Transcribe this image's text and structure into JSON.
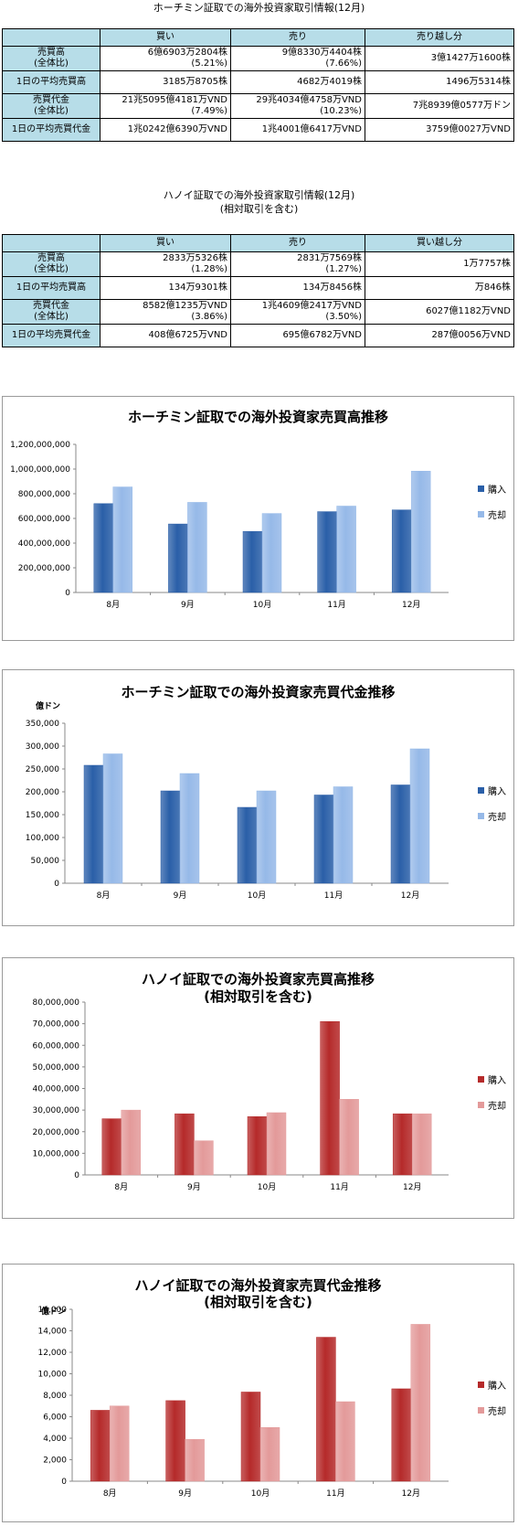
{
  "hcm_table": {
    "title": "ホーチミン証取での海外投資家取引情報(12月)",
    "headers": [
      "",
      "買い",
      "売り",
      "売り越し分"
    ],
    "rows": [
      {
        "label": "売買高",
        "label2": "(全体比)",
        "c1": "6億6903万2804株",
        "c1b": "(5.21%)",
        "c2": "9億8330万4404株",
        "c2b": "(7.66%)",
        "c3": "3億1427万1600株"
      },
      {
        "label": "1日の平均売買高",
        "label2": "",
        "c1": "3185万8705株",
        "c1b": "",
        "c2": "4682万4019株",
        "c2b": "",
        "c3": "1496万5314株"
      },
      {
        "label": "売買代金",
        "label2": "(全体比)",
        "c1": "21兆5095億4181万VND",
        "c1b": "(7.49%)",
        "c2": "29兆4034億4758万VND",
        "c2b": "(10.23%)",
        "c3": "7兆8939億0577万ドン"
      },
      {
        "label": "1日の平均売買代金",
        "label2": "",
        "c1": "1兆0242億6390万VND",
        "c1b": "",
        "c2": "1兆4001億6417万VND",
        "c2b": "",
        "c3": "3759億0027万VND"
      }
    ]
  },
  "hn_table": {
    "title": "ハノイ証取での海外投資家取引情報(12月)",
    "subtitle": "(相対取引を含む)",
    "headers": [
      "",
      "買い",
      "売り",
      "買い越し分"
    ],
    "rows": [
      {
        "label": "売買高",
        "label2": "(全体比)",
        "c1": "2833万5326株",
        "c1b": "(1.28%)",
        "c2": "2831万7569株",
        "c2b": "(1.27%)",
        "c3": "1万7757株"
      },
      {
        "label": "1日の平均売買高",
        "label2": "",
        "c1": "134万9301株",
        "c1b": "",
        "c2": "134万8456株",
        "c2b": "",
        "c3": "万846株"
      },
      {
        "label": "売買代金",
        "label2": "(全体比)",
        "c1": "8582億1235万VND",
        "c1b": "(3.86%)",
        "c2": "1兆4609億2417万VND",
        "c2b": "(3.50%)",
        "c3": "6027億1182万VND"
      },
      {
        "label": "1日の平均売買代金",
        "label2": "",
        "c1": "408億6725万VND",
        "c1b": "",
        "c2": "695億6782万VND",
        "c2b": "",
        "c3": "287億0056万VND"
      }
    ]
  },
  "chart_data": [
    {
      "type": "bar",
      "title": "ホーチミン証取での海外投資家売買高推移",
      "subtitle": "",
      "unit": "",
      "categories": [
        "8月",
        "9月",
        "10月",
        "11月",
        "12月"
      ],
      "series": [
        {
          "name": "購入",
          "values": [
            720000000,
            555000000,
            495000000,
            655000000,
            669000000
          ]
        },
        {
          "name": "売却",
          "values": [
            855000000,
            730000000,
            640000000,
            700000000,
            983000000
          ]
        }
      ],
      "ylim": [
        0,
        1200000000
      ],
      "yticks": [
        "0",
        "200,000,000",
        "400,000,000",
        "600,000,000",
        "800,000,000",
        "1,000,000,000",
        "1,200,000,000"
      ],
      "legend_position": "right",
      "colors": {
        "buy": "#2a5fa8",
        "sell": "#96b9e8"
      }
    },
    {
      "type": "bar",
      "title": "ホーチミン証取での海外投資家売買代金推移",
      "subtitle": "",
      "unit": "億ドン",
      "categories": [
        "8月",
        "9月",
        "10月",
        "11月",
        "12月"
      ],
      "series": [
        {
          "name": "購入",
          "values": [
            258000,
            202000,
            166000,
            193000,
            215000
          ]
        },
        {
          "name": "売却",
          "values": [
            283000,
            240000,
            202000,
            211000,
            294000
          ]
        }
      ],
      "ylim": [
        0,
        350000
      ],
      "yticks": [
        "0",
        "50,000",
        "100,000",
        "150,000",
        "200,000",
        "250,000",
        "300,000",
        "350,000"
      ],
      "legend_position": "right",
      "colors": {
        "buy": "#2a5fa8",
        "sell": "#96b9e8"
      }
    },
    {
      "type": "bar",
      "title": "ハノイ証取での海外投資家売買高推移",
      "subtitle": "(相対取引を含む)",
      "unit": "",
      "categories": [
        "8月",
        "9月",
        "10月",
        "11月",
        "12月"
      ],
      "series": [
        {
          "name": "購入",
          "values": [
            26000000,
            28300000,
            27000000,
            71000000,
            28300000
          ]
        },
        {
          "name": "売却",
          "values": [
            30000000,
            15800000,
            28800000,
            35000000,
            28300000
          ]
        }
      ],
      "ylim": [
        0,
        80000000
      ],
      "yticks": [
        "0",
        "10,000,000",
        "20,000,000",
        "30,000,000",
        "40,000,000",
        "50,000,000",
        "60,000,000",
        "70,000,000",
        "80,000,000"
      ],
      "legend_position": "right",
      "colors": {
        "buy": "#b52a2a",
        "sell": "#e39a9a"
      }
    },
    {
      "type": "bar",
      "title": "ハノイ証取での海外投資家売買代金推移",
      "subtitle": "(相対取引を含む)",
      "unit": "億ドン",
      "categories": [
        "8月",
        "9月",
        "10月",
        "11月",
        "12月"
      ],
      "series": [
        {
          "name": "購入",
          "values": [
            6600,
            7500,
            8300,
            13400,
            8600
          ]
        },
        {
          "name": "売却",
          "values": [
            7000,
            3900,
            5000,
            7400,
            14600
          ]
        }
      ],
      "ylim": [
        0,
        16000
      ],
      "yticks": [
        "0",
        "2,000",
        "4,000",
        "6,000",
        "8,000",
        "10,000",
        "12,000",
        "14,000",
        "16,000"
      ],
      "legend_position": "right",
      "colors": {
        "buy": "#b52a2a",
        "sell": "#e39a9a"
      }
    }
  ]
}
